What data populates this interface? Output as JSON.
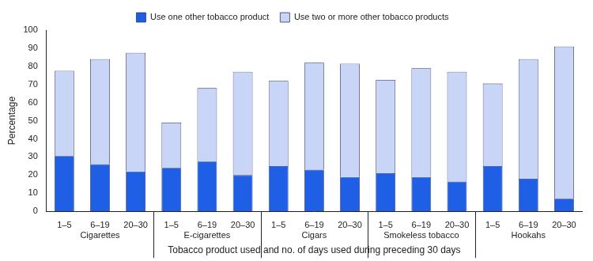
{
  "chart_data": {
    "type": "bar",
    "x_label": "Tobacco product used and no. of days used during preceding 30 days",
    "y_label": "Percentage",
    "categories": [
      "1–5",
      "6–19",
      "20–30",
      "1–5",
      "6–19",
      "20–30",
      "1–5",
      "6–19",
      "20–30",
      "1–5",
      "6–19",
      "20–30",
      "1–5",
      "6–19",
      "20–30"
    ],
    "groups": [
      "Cigarettes",
      "E-cigarettes",
      "Cigars",
      "Smokeless tobacco",
      "Hookahs"
    ],
    "series": [
      {
        "name": "Use one other tobacco product",
        "color": "#1f5fe6",
        "values": [
          30.5,
          26,
          22,
          24,
          27.5,
          20,
          25,
          23,
          19,
          21,
          19,
          16.5,
          25,
          18,
          7
        ]
      },
      {
        "name": "Use two or more other tobacco products",
        "color": "#c8d5f6",
        "values": [
          47,
          58,
          65.5,
          25,
          40.5,
          57,
          47,
          59,
          62.5,
          51.5,
          60,
          60.5,
          45.5,
          66,
          84
        ]
      }
    ],
    "stacked": true,
    "ylim": [
      0,
      100
    ],
    "yticks": [
      0,
      10,
      20,
      30,
      40,
      50,
      60,
      70,
      80,
      90,
      100
    ],
    "grid": false,
    "legend": "top"
  }
}
